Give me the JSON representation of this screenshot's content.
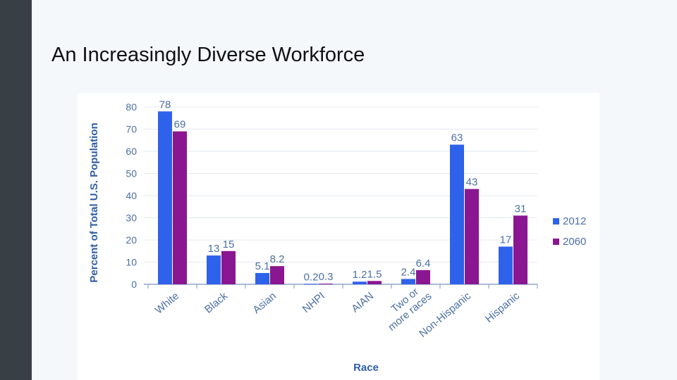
{
  "slide": {
    "title": "An Increasingly Diverse Workforce"
  },
  "colors": {
    "series_2012": "#2f62ea",
    "series_2060": "#8a1791",
    "axis_text": "#4a6fa5",
    "axis_title": "#2f5ea6",
    "grid": "#e3e8ee",
    "sidebar": "#384046"
  },
  "chart_data": {
    "type": "bar",
    "categories": [
      "White",
      "Black",
      "Asian",
      "NHPI",
      "AIAN",
      "Two or more races",
      "Non-Hispanic",
      "Hispanic"
    ],
    "category_lines": [
      [
        "White"
      ],
      [
        "Black"
      ],
      [
        "Asian"
      ],
      [
        "NHPI"
      ],
      [
        "AIAN"
      ],
      [
        "Two or",
        "more races"
      ],
      [
        "Non-Hispanic"
      ],
      [
        "Hispanic"
      ]
    ],
    "series": [
      {
        "name": "2012",
        "values": [
          78,
          13,
          5.1,
          0.2,
          1.2,
          2.4,
          63,
          17
        ],
        "labels": [
          "78",
          "13",
          "5.1",
          "0.2",
          "1.2",
          "2.4",
          "63",
          "17"
        ]
      },
      {
        "name": "2060",
        "values": [
          69,
          15,
          8.2,
          0.3,
          1.5,
          6.4,
          43,
          31
        ],
        "labels": [
          "69",
          "15",
          "8.2",
          "0.3",
          "1.5",
          "6.4",
          "43",
          "31"
        ]
      }
    ],
    "xlabel": "Race",
    "ylabel": "Percent of Total U.S. Population",
    "ylim": [
      0,
      80
    ],
    "yticks": [
      0,
      10,
      20,
      30,
      40,
      50,
      60,
      70,
      80
    ],
    "grid": true,
    "legend": "right"
  }
}
